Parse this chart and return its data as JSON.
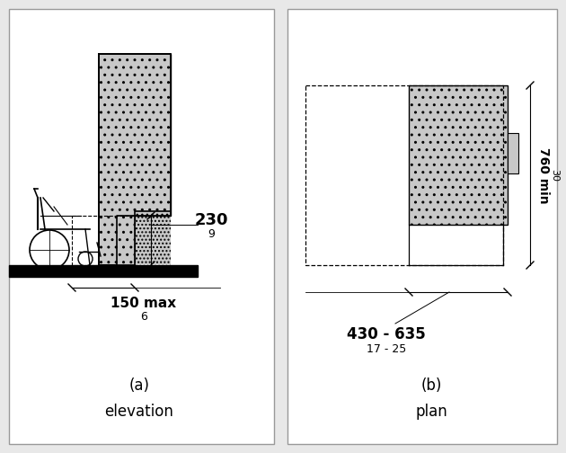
{
  "bg_color": "#e8e8e8",
  "panel_bg": "#ffffff",
  "line_color": "#000000",
  "gray_fill": "#c8c8c8",
  "title_a": "(a)\nelevation",
  "title_b": "(b)\nplan",
  "dim_230": "230",
  "dim_9": "9",
  "dim_150": "150 max",
  "dim_6": "6",
  "dim_760": "760 min",
  "dim_30": "30",
  "dim_430_635": "430 - 635",
  "dim_17_25": "17 - 25"
}
